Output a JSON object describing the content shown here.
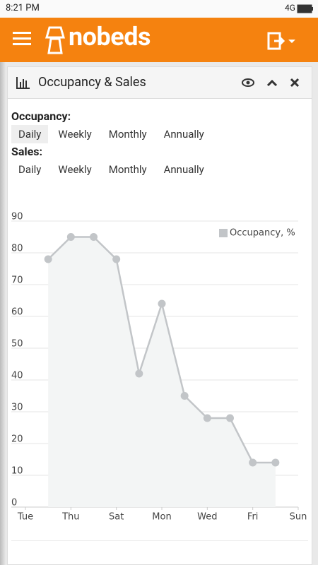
{
  "status": {
    "time": "8:21 PM",
    "network": "4G"
  },
  "header": {
    "logo": "nobeds"
  },
  "panel": {
    "title": "Occupancy & Sales",
    "occupancy_label": "Occupancy:",
    "occupancy_tabs": [
      "Daily",
      "Weekly",
      "Monthly",
      "Annually"
    ],
    "sales_label": "Sales:",
    "sales_tabs": [
      "Daily",
      "Weekly",
      "Monthly",
      "Annually"
    ]
  },
  "chart_data": {
    "type": "line",
    "x": [
      1,
      2,
      3,
      4,
      5,
      6,
      7,
      8,
      9,
      10,
      11
    ],
    "series": [
      {
        "name": "Occupancy, %",
        "color": "#c2c5c8",
        "values": [
          78,
          85,
          85,
          78,
          42,
          64,
          35,
          28,
          28,
          14,
          14
        ]
      }
    ],
    "xlim": [
      0,
      12
    ],
    "xticks": [
      {
        "value": 0,
        "label": "Tue"
      },
      {
        "value": 2,
        "label": "Thu"
      },
      {
        "value": 4,
        "label": "Sat"
      },
      {
        "value": 6,
        "label": "Mon"
      },
      {
        "value": 8,
        "label": "Wed"
      },
      {
        "value": 10,
        "label": "Fri"
      },
      {
        "value": 12,
        "label": "Sun"
      }
    ],
    "ylim": [
      0,
      90
    ],
    "yticks": [
      0,
      10,
      20,
      30,
      40,
      50,
      60,
      70,
      80,
      90
    ],
    "grid": true,
    "legend": "top-right",
    "area": true
  }
}
